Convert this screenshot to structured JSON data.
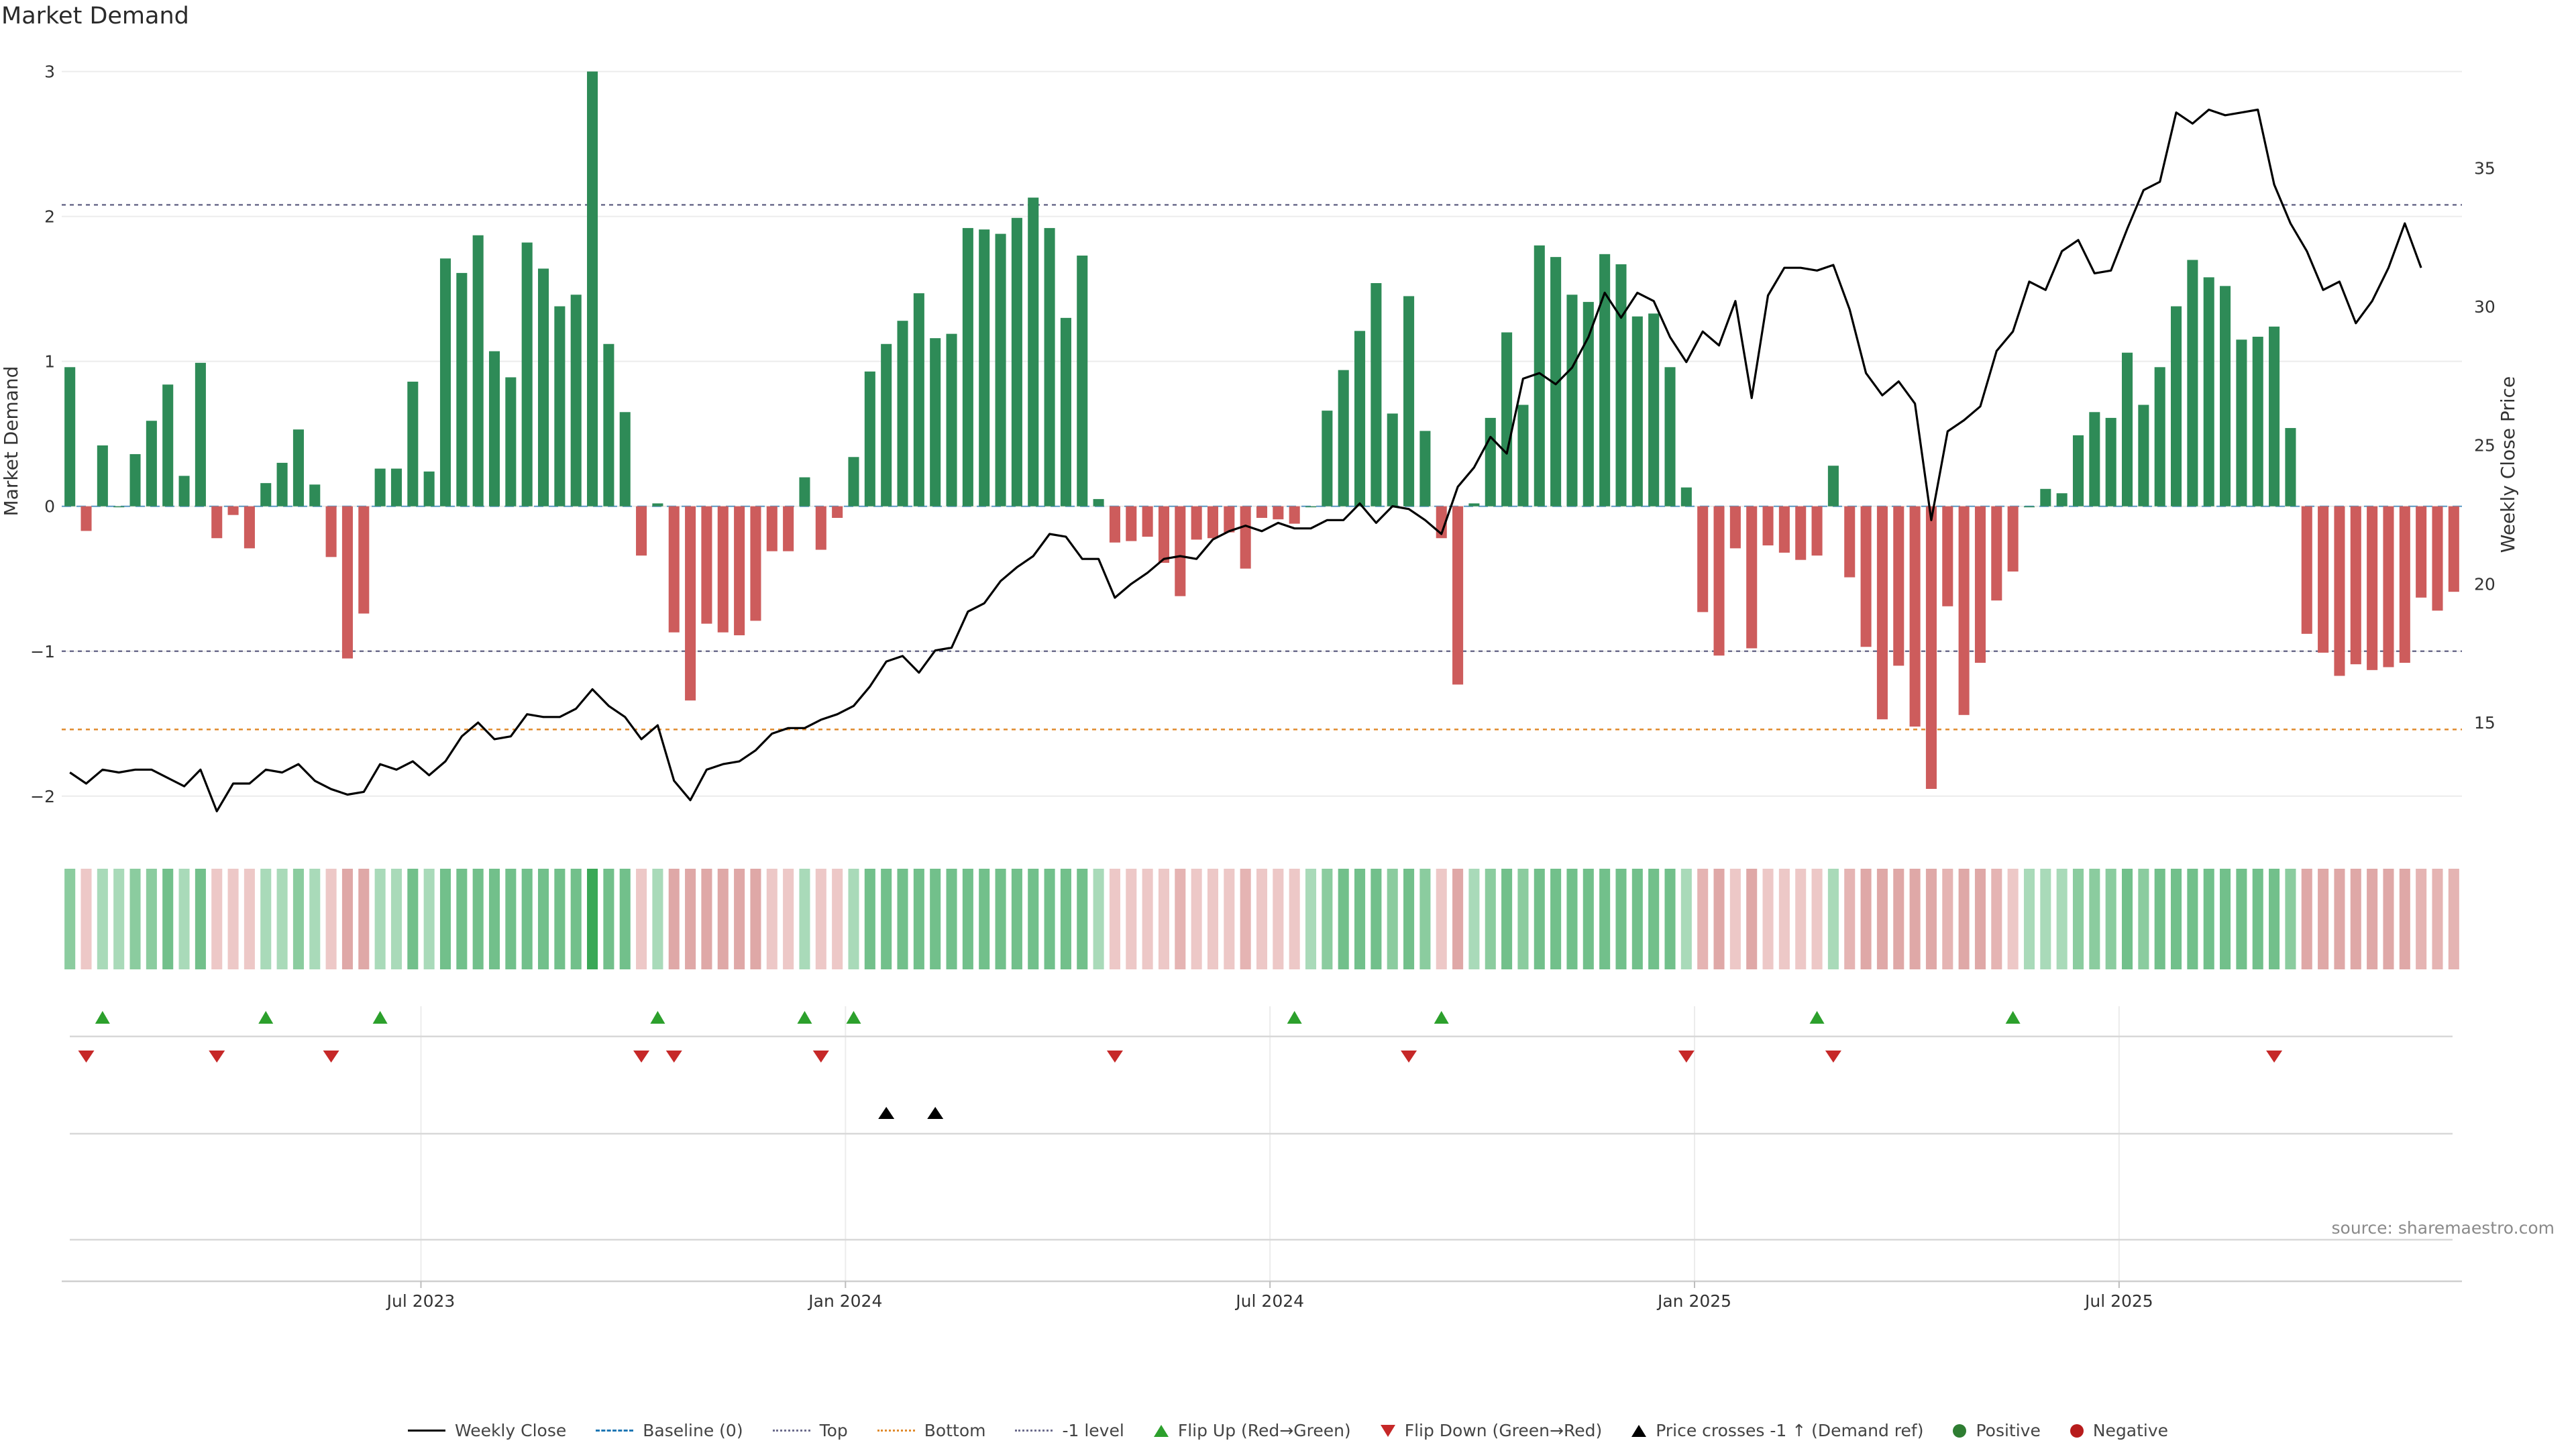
{
  "title": "Market Demand",
  "source": "source: sharemaestro.com",
  "colors": {
    "positive": "#2e8b57",
    "negative": "#cd5c5c",
    "price": "#000000",
    "top_line": "#6c6c8c",
    "bottom_line": "#e08a2c",
    "flip_up": "#2ca02c",
    "flip_down": "#c62828",
    "cross": "#000000"
  },
  "legend": [
    {
      "label": "Weekly Close",
      "icon": "line-black"
    },
    {
      "label": "Baseline (0)",
      "icon": "dash-blue"
    },
    {
      "label": "Top",
      "icon": "dot-gray"
    },
    {
      "label": "Bottom",
      "icon": "dot-orange"
    },
    {
      "label": "-1 level",
      "icon": "dot-gray"
    },
    {
      "label": "Flip Up (Red→Green)",
      "icon": "triangle-up-green"
    },
    {
      "label": "Flip Down (Green→Red)",
      "icon": "triangle-down-red"
    },
    {
      "label": "Price crosses -1 ↑ (Demand ref)",
      "icon": "triangle-up-black"
    },
    {
      "label": "Positive",
      "icon": "dot-green"
    },
    {
      "label": "Negative",
      "icon": "dot-red"
    }
  ],
  "chart_data": {
    "type": "bar",
    "title": "Market Demand",
    "ylabel": "Market Demand",
    "ylabel_right": "Weekly Close Price",
    "ylim": [
      -2.2,
      3.1
    ],
    "ylim_right": [
      11.3,
      39
    ],
    "yticks": [
      3,
      2,
      1,
      0,
      -1,
      -2
    ],
    "yticks_right": [
      35,
      30,
      25,
      20,
      15
    ],
    "x_tick_labels": [
      "Jul 2023",
      "Jan 2024",
      "Jul 2024",
      "Jan 2025",
      "Jul 2025"
    ],
    "x_tick_weeks": [
      22,
      48,
      74,
      100,
      126
    ],
    "reference_lines": {
      "top": 2.08,
      "bottom": -1.54,
      "minus_one": -1,
      "baseline": 0
    },
    "grid": true,
    "legend_position": "bottom-center",
    "series": [
      {
        "name": "Market Demand",
        "values": [
          0.96,
          -0.17,
          0.42,
          0.0,
          0.36,
          0.59,
          0.84,
          0.21,
          0.99,
          -0.22,
          -0.06,
          -0.29,
          0.16,
          0.3,
          0.53,
          0.15,
          -0.35,
          -1.05,
          -0.74,
          0.26,
          0.26,
          0.86,
          0.24,
          1.71,
          1.61,
          1.87,
          1.07,
          0.89,
          1.82,
          1.64,
          1.38,
          1.46,
          3.0,
          1.12,
          0.65,
          -0.34,
          0.02,
          -0.87,
          -1.34,
          -0.81,
          -0.87,
          -0.89,
          -0.79,
          -0.31,
          -0.31,
          0.2,
          -0.3,
          -0.08,
          0.34,
          0.93,
          1.12,
          1.28,
          1.47,
          1.16,
          1.19,
          1.92,
          1.91,
          1.88,
          1.99,
          2.13,
          1.92,
          1.3,
          1.73,
          0.05,
          -0.25,
          -0.24,
          -0.21,
          -0.39,
          -0.62,
          -0.23,
          -0.22,
          -0.18,
          -0.43,
          -0.08,
          -0.09,
          -0.12,
          0.0,
          0.66,
          0.94,
          1.21,
          1.54,
          0.64,
          1.45,
          0.52,
          -0.22,
          -1.23,
          0.02,
          0.61,
          1.2,
          0.7,
          1.8,
          1.72,
          1.46,
          1.41,
          1.74,
          1.67,
          1.31,
          1.33,
          0.96,
          0.13,
          -0.73,
          -1.03,
          -0.29,
          -0.98,
          -0.27,
          -0.32,
          -0.37,
          -0.34,
          0.28,
          -0.49,
          -0.97,
          -1.47,
          -1.1,
          -1.52,
          -1.95,
          -0.69,
          -1.44,
          -1.08,
          -0.65,
          -0.45,
          0.0,
          0.12,
          0.09,
          0.49,
          0.65,
          0.61,
          1.06,
          0.7,
          0.96,
          1.38,
          1.7,
          1.58,
          1.52,
          1.15,
          1.17,
          1.24,
          0.54,
          -0.88,
          -1.01,
          -1.17,
          -1.09,
          -1.13,
          -1.11,
          -1.08,
          -0.63,
          -0.72,
          -0.59
        ]
      },
      {
        "name": "Weekly Close",
        "axis": "right",
        "values": [
          13.2,
          12.8,
          13.3,
          13.2,
          13.3,
          13.3,
          13.0,
          12.7,
          13.3,
          11.8,
          12.8,
          12.8,
          13.3,
          13.2,
          13.5,
          12.9,
          12.6,
          12.4,
          12.5,
          13.5,
          13.3,
          13.6,
          13.1,
          13.6,
          14.5,
          15.0,
          14.4,
          14.5,
          15.3,
          15.2,
          15.2,
          15.5,
          16.2,
          15.6,
          15.2,
          14.4,
          14.9,
          12.9,
          12.2,
          13.3,
          13.5,
          13.6,
          14.0,
          14.6,
          14.8,
          14.8,
          15.1,
          15.3,
          15.6,
          16.3,
          17.2,
          17.4,
          16.8,
          17.6,
          17.7,
          19.0,
          19.3,
          20.1,
          20.6,
          21.0,
          21.8,
          21.7,
          20.9,
          20.9,
          19.5,
          20.0,
          20.4,
          20.9,
          21.0,
          20.9,
          21.6,
          21.9,
          22.1,
          21.9,
          22.2,
          22.0,
          22.0,
          22.3,
          22.3,
          22.9,
          22.2,
          22.8,
          22.7,
          22.3,
          21.8,
          23.5,
          24.2,
          25.3,
          24.7,
          27.4,
          27.6,
          27.2,
          27.8,
          28.9,
          30.5,
          29.6,
          30.5,
          30.2,
          28.9,
          28.0,
          29.1,
          28.6,
          30.2,
          26.7,
          30.4,
          31.4,
          31.4,
          31.3,
          31.5,
          29.9,
          27.6,
          26.8,
          27.3,
          26.5,
          22.3,
          25.5,
          25.9,
          26.4,
          28.4,
          29.1,
          30.9,
          30.6,
          32.0,
          32.4,
          31.2,
          31.3,
          32.8,
          34.2,
          34.5,
          37.0,
          36.6,
          37.1,
          36.9,
          37.0,
          37.1,
          34.4,
          33.0,
          32.0,
          30.6,
          30.9,
          29.4,
          30.2,
          31.4,
          33.0,
          31.4
        ]
      }
    ],
    "heat_strip": {
      "name": "Demand heat strip",
      "levels": [
        2,
        1,
        1,
        1,
        2,
        2,
        3,
        1,
        3,
        1,
        1,
        1,
        1,
        1,
        2,
        1,
        1,
        3,
        3,
        1,
        1,
        3,
        1,
        3,
        3,
        3,
        3,
        3,
        3,
        3,
        3,
        3,
        4,
        3,
        3,
        1,
        1,
        3,
        3,
        3,
        3,
        3,
        3,
        1,
        1,
        1,
        1,
        1,
        1,
        3,
        3,
        3,
        3,
        3,
        3,
        3,
        3,
        3,
        3,
        3,
        3,
        3,
        3,
        1,
        1,
        1,
        1,
        1,
        2,
        1,
        1,
        1,
        2,
        1,
        1,
        1,
        1,
        2,
        3,
        3,
        3,
        2,
        3,
        2,
        1,
        3,
        1,
        2,
        3,
        2,
        3,
        3,
        3,
        3,
        3,
        3,
        3,
        3,
        3,
        1,
        2,
        3,
        1,
        3,
        1,
        1,
        1,
        1,
        1,
        2,
        3,
        3,
        3,
        3,
        3,
        2,
        3,
        3,
        2,
        1,
        1,
        1,
        1,
        2,
        2,
        2,
        3,
        2,
        3,
        3,
        3,
        3,
        3,
        3,
        3,
        3,
        2,
        3,
        3,
        3,
        3,
        3,
        3,
        3,
        2,
        2,
        2
      ]
    },
    "flip_up_weeks": [
      2,
      12,
      19,
      36,
      45,
      48,
      75,
      84,
      107,
      119
    ],
    "flip_down_weeks": [
      1,
      9,
      16,
      35,
      37,
      46,
      64,
      82,
      99,
      108,
      135
    ],
    "price_cross_weeks": [
      50,
      53
    ]
  }
}
